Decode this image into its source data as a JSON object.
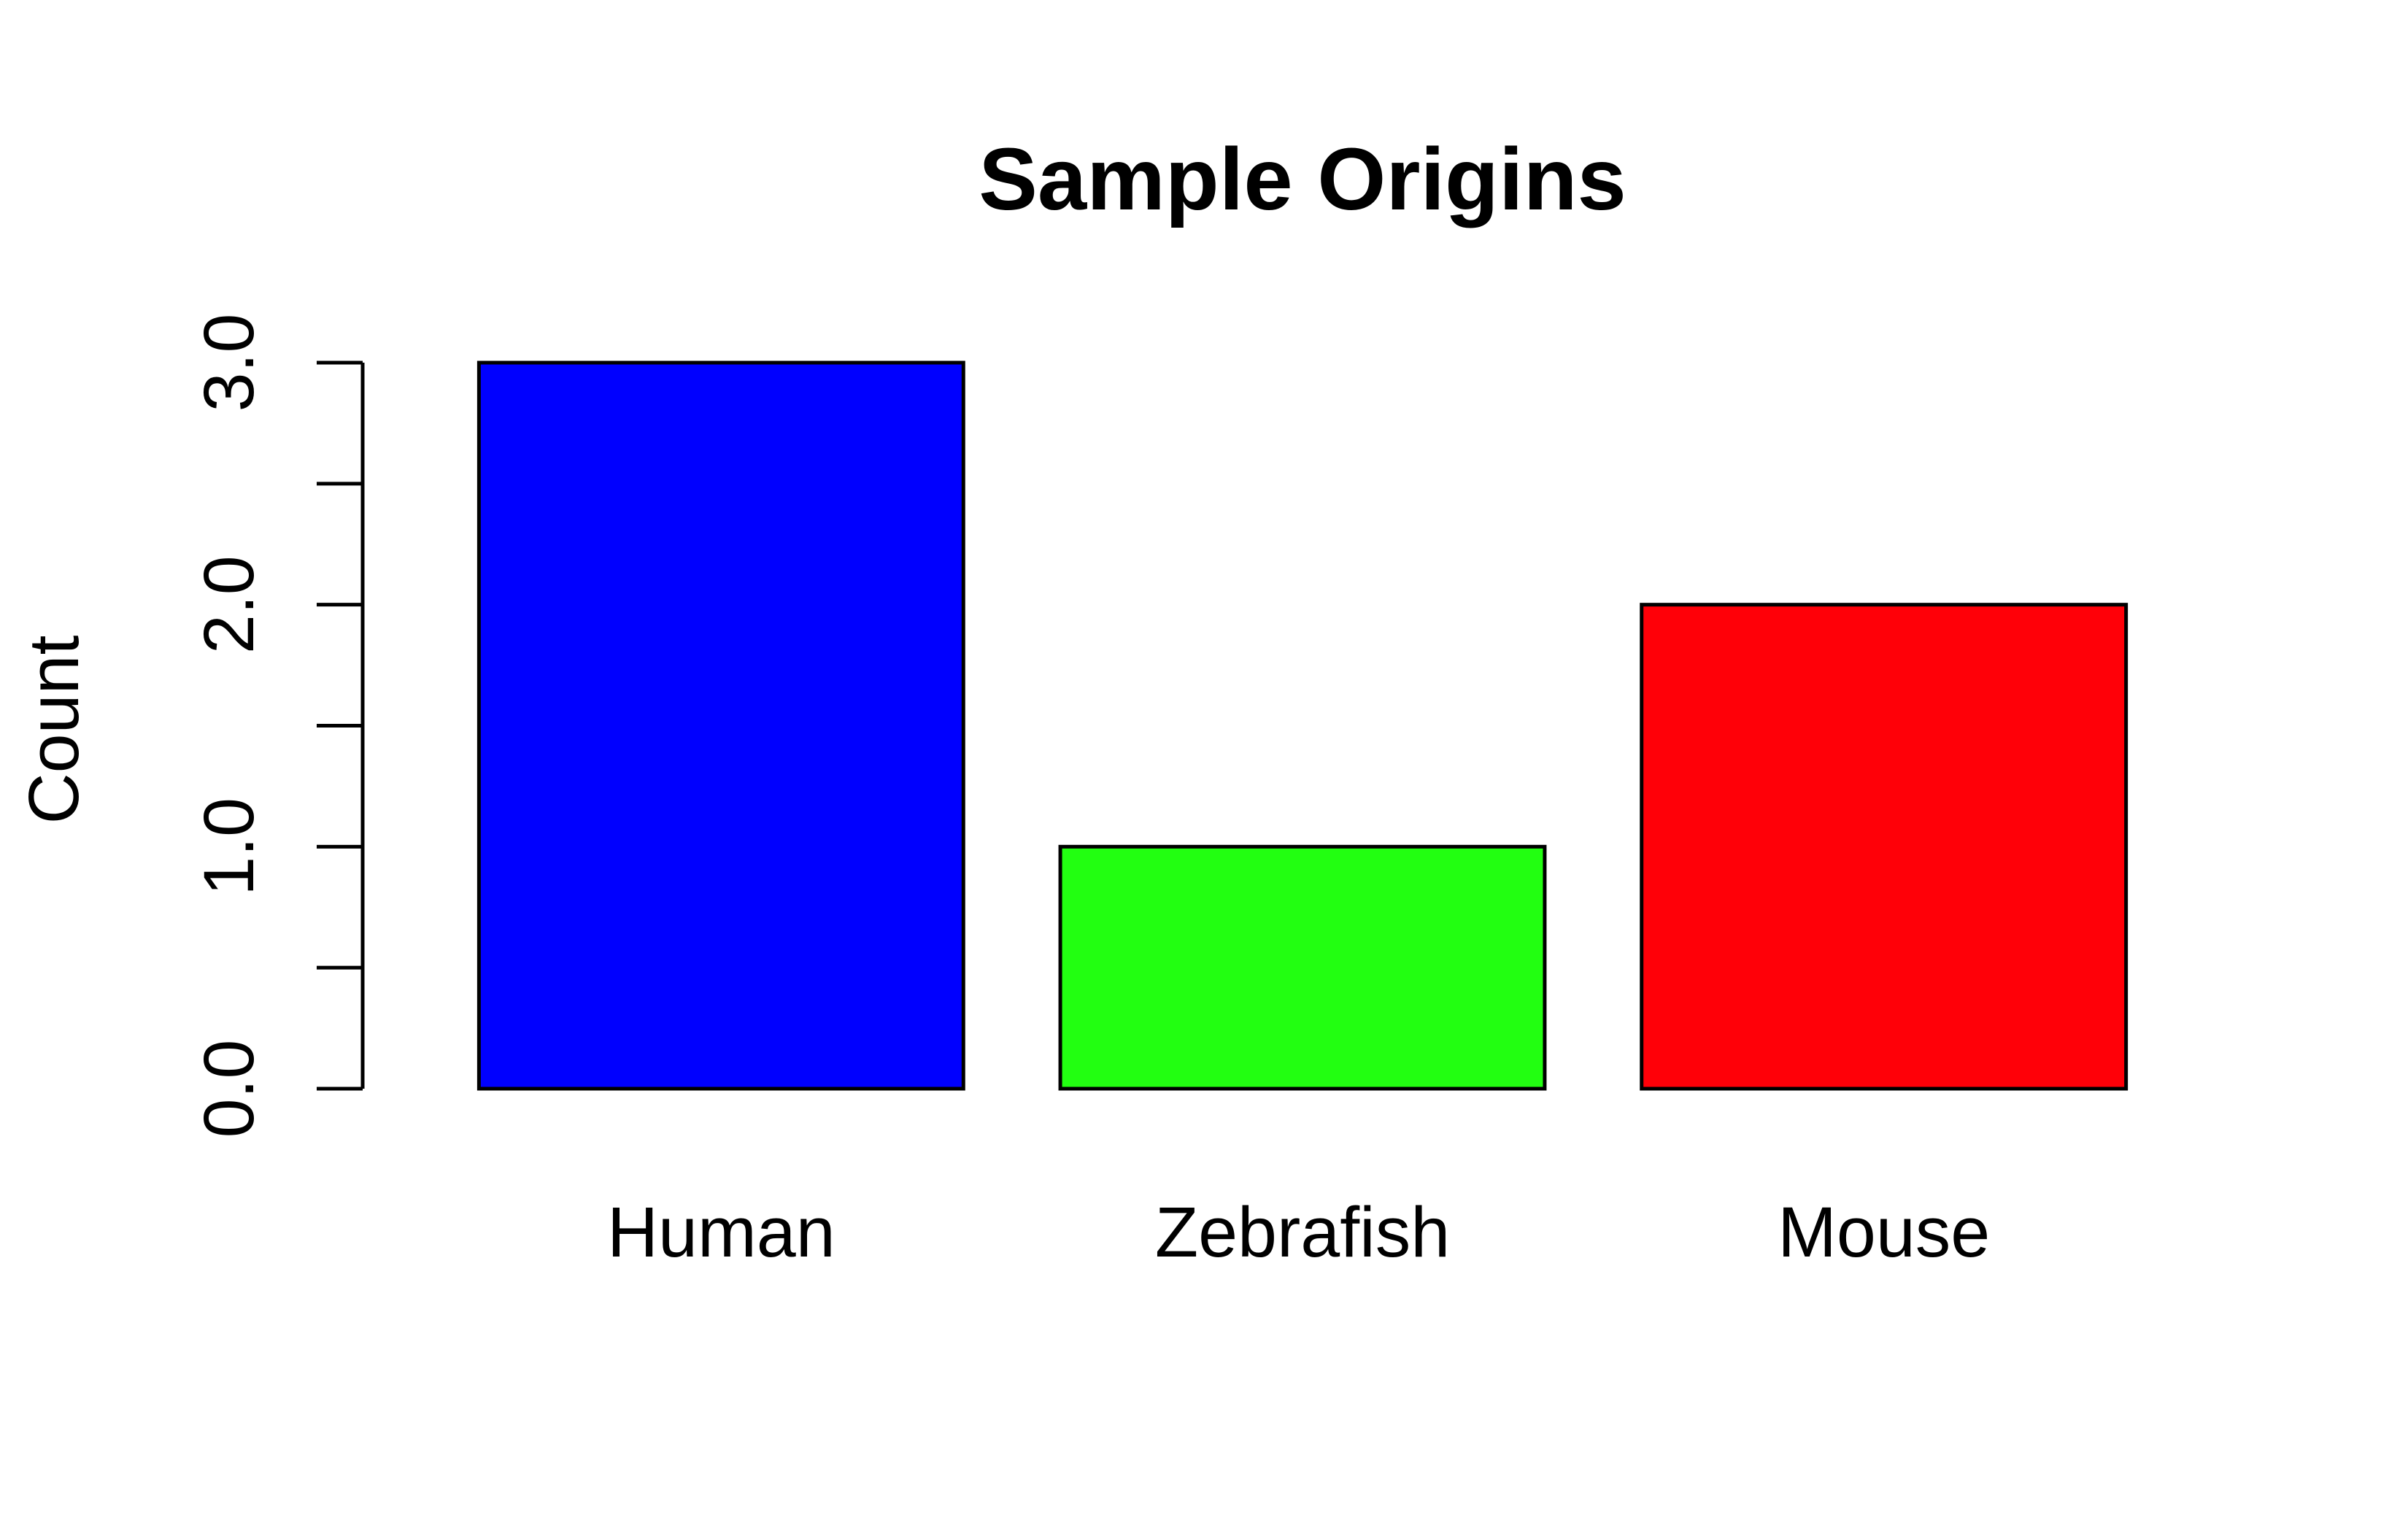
{
  "chart_data": {
    "type": "bar",
    "title": "Sample Origins",
    "xlabel": "",
    "ylabel": "Count",
    "categories": [
      "Human",
      "Zebrafish",
      "Mouse"
    ],
    "values": [
      3,
      1,
      2
    ],
    "colors": [
      "#0000ff",
      "#22ff11",
      "#ff0008"
    ],
    "ylim": [
      0,
      3
    ],
    "yticks": [
      0,
      0.5,
      1,
      1.5,
      2,
      2.5,
      3
    ],
    "ytick_labels": [
      "0.0",
      "1.0",
      "2.0",
      "3.0"
    ],
    "ytick_label_values": [
      0,
      1,
      2,
      3
    ],
    "grid": false,
    "legend": "none"
  }
}
